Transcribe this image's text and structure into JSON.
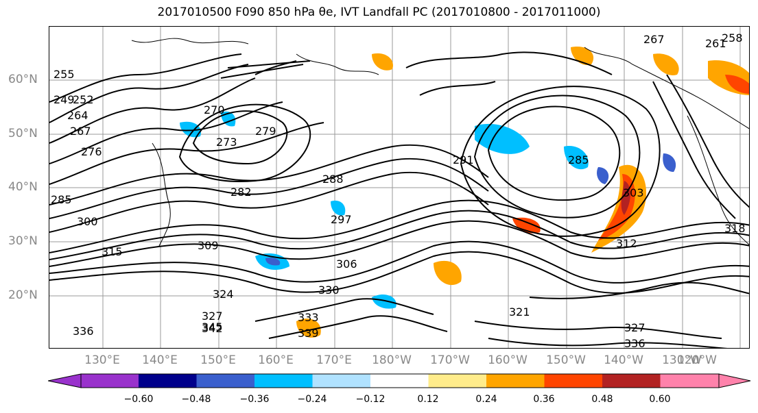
{
  "title": "2017010500 F090 850 hPa θe, IVT Landfall PC (2017010800 - 2017011000)",
  "lat_labels": [
    "60°N",
    "50°N",
    "40°N",
    "30°N",
    "20°N"
  ],
  "lon_labels": [
    "130°E",
    "140°E",
    "150°E",
    "160°E",
    "170°E",
    "180°W",
    "170°W",
    "160°W",
    "150°W",
    "140°W",
    "130°W",
    "120°W"
  ],
  "contour_labels": [
    "255",
    "249",
    "252",
    "264",
    "267",
    "276",
    "285",
    "300",
    "315",
    "270",
    "273",
    "279",
    "282",
    "288",
    "291",
    "297",
    "309",
    "306",
    "324",
    "330",
    "327",
    "342",
    "345",
    "336",
    "339",
    "333",
    "321",
    "312",
    "318",
    "303",
    "285",
    "258",
    "261",
    "267",
    "327",
    "336"
  ],
  "colorbar": {
    "ticks": [
      "−0.60",
      "−0.48",
      "−0.36",
      "−0.24",
      "−0.12",
      "0.12",
      "0.24",
      "0.36",
      "0.48",
      "0.60"
    ],
    "colors": [
      "#9932cc",
      "#00008b",
      "#3a5fcd",
      "#00bfff",
      "#b0e2ff",
      "#ffffff",
      "#ffec8b",
      "#ffa500",
      "#ff4500",
      "#b22222",
      "#ff82ab"
    ]
  }
}
